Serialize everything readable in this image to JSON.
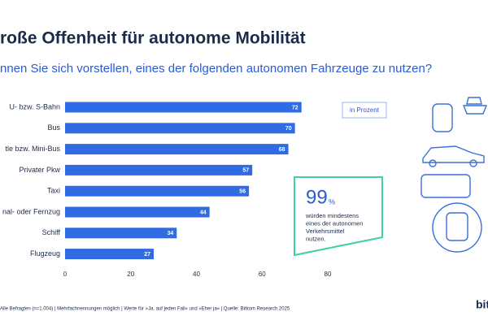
{
  "chart_data": {
    "type": "bar",
    "title": "roße Offenheit für autonome Mobilität",
    "subtitle": "nnen Sie sich vorstellen, eines der folgenden autonomen Fahrzeuge zu nutzen?",
    "categories": [
      "U- bzw. S-Bahn",
      "Bus",
      "tle bzw. Mini-Bus",
      "Privater Pkw",
      "Taxi",
      "nal- oder Fernzug",
      "Schiff",
      "Flugzeug"
    ],
    "values": [
      72,
      70,
      68,
      57,
      56,
      44,
      34,
      27
    ],
    "color": "#2f6be3",
    "xlim": [
      0,
      80
    ],
    "xticks": [
      0,
      20,
      40,
      60,
      80
    ],
    "grid": false,
    "unit_note": "in Prozent",
    "callout": {
      "value": 99,
      "unit": "%",
      "lines": [
        "würden mindestens",
        "eines der autonomen",
        "Verkehrsmittel",
        "nutzen."
      ]
    },
    "source": "Alle Befragten (n=1.004) | Mehrfachnennungen möglich | Werte für »Ja, auf jeden Fall« und »Eher ja« | Quelle: Bitkom Research 2025",
    "logo": "bit"
  }
}
